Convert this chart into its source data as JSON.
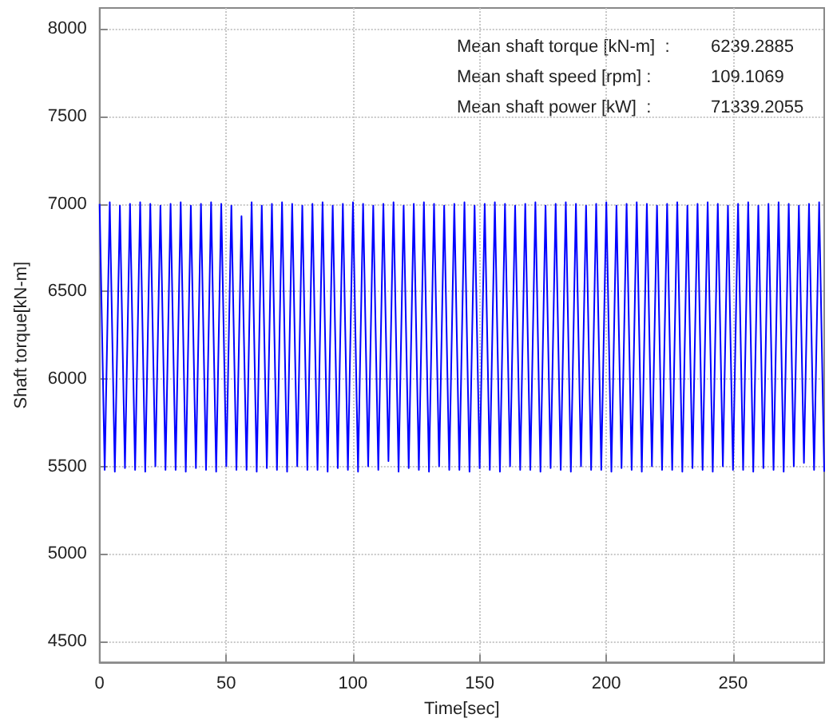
{
  "chart_data": {
    "type": "line",
    "xlabel": "Time[sec]",
    "ylabel": "Shaft torque[kN-m]",
    "annotations": [
      "Mean shaft torque [kN-m]  :",
      "6239.2885",
      "Mean shaft speed [rpm] :",
      "109.1069",
      "Mean shaft power [kW]  :",
      "71339.2055"
    ],
    "xlim": [
      0,
      286
    ],
    "xticks": [
      0,
      50,
      100,
      150,
      200,
      250
    ],
    "ylim": [
      4380,
      8120
    ],
    "yticks": [
      4500,
      5000,
      5500,
      6000,
      6500,
      7000,
      7500,
      8000
    ],
    "grid": true,
    "marker": "none",
    "line_style": "solid",
    "x": [
      0,
      2,
      4,
      6,
      8,
      10,
      12,
      14,
      16,
      18,
      20,
      22,
      24,
      26,
      28,
      30,
      32,
      34,
      36,
      38,
      40,
      42,
      44,
      46,
      48,
      50,
      52,
      54,
      56,
      58,
      60,
      62,
      64,
      66,
      68,
      70,
      72,
      74,
      76,
      78,
      80,
      82,
      84,
      86,
      88,
      90,
      92,
      94,
      96,
      98,
      100,
      102,
      104,
      106,
      108,
      110,
      112,
      114,
      116,
      118,
      120,
      122,
      124,
      126,
      128,
      130,
      132,
      134,
      136,
      138,
      140,
      142,
      144,
      146,
      148,
      150,
      152,
      154,
      156,
      158,
      160,
      162,
      164,
      166,
      168,
      170,
      172,
      174,
      176,
      178,
      180,
      182,
      184,
      186,
      188,
      190,
      192,
      194,
      196,
      198,
      200,
      202,
      204,
      206,
      208,
      210,
      212,
      214,
      216,
      218,
      220,
      222,
      224,
      226,
      228,
      230,
      232,
      234,
      236,
      238,
      240,
      242,
      244,
      246,
      248,
      250,
      252,
      254,
      256,
      258,
      260,
      262,
      264,
      266,
      268,
      270,
      272,
      274,
      276,
      278,
      280,
      282,
      284,
      286
    ],
    "series": [
      {
        "color": "#0000ff",
        "values": [
          7000,
          5480,
          7010,
          5470,
          6990,
          5490,
          7000,
          5480,
          7010,
          5470,
          7000,
          5500,
          6990,
          5480,
          7000,
          5480,
          7010,
          5470,
          6990,
          5490,
          7000,
          5480,
          7010,
          5470,
          7000,
          5500,
          6990,
          5480,
          6930,
          5480,
          7010,
          5470,
          6990,
          5490,
          7000,
          5480,
          7010,
          5470,
          7000,
          5500,
          6990,
          5480,
          7000,
          5480,
          7010,
          5470,
          6990,
          5490,
          7000,
          5480,
          7010,
          5470,
          7000,
          5500,
          6990,
          5480,
          7000,
          5530,
          7010,
          5470,
          6990,
          5490,
          7000,
          5480,
          7010,
          5470,
          7000,
          5500,
          6990,
          5480,
          7000,
          5480,
          7010,
          5470,
          6990,
          5490,
          7000,
          5480,
          7010,
          5470,
          7000,
          5500,
          6990,
          5480,
          7000,
          5480,
          7010,
          5470,
          6990,
          5490,
          7000,
          5480,
          7010,
          5470,
          7000,
          5500,
          6990,
          5480,
          7000,
          5480,
          7010,
          5470,
          6990,
          5490,
          7000,
          5480,
          7010,
          5470,
          7000,
          5500,
          6990,
          5480,
          7000,
          5480,
          7010,
          5470,
          6990,
          5490,
          7000,
          5480,
          7010,
          5470,
          7000,
          5500,
          6990,
          5480,
          7000,
          5480,
          7010,
          5470,
          6990,
          5490,
          7000,
          5480,
          7010,
          5470,
          7000,
          5500,
          6990,
          5520,
          7000,
          5480,
          7010,
          5470
        ]
      }
    ]
  }
}
